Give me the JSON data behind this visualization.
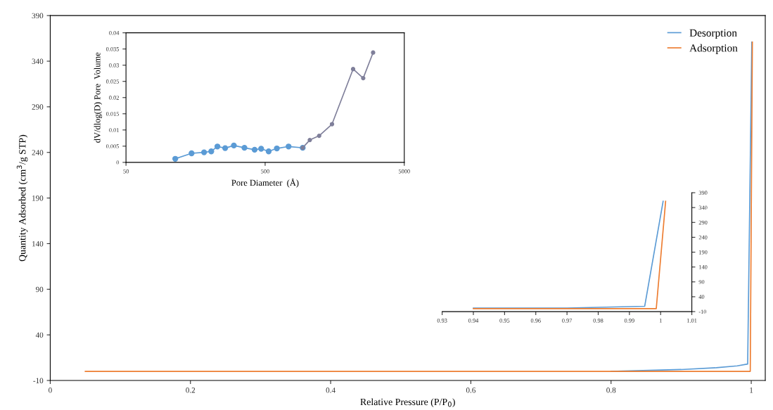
{
  "chart_data": [
    {
      "type": "line",
      "xlabel": "Relative Pressure (P/P$_{0}$)",
      "ylabel": "Quantity Adsorbed (cm$^{3}$/g STP)",
      "xlim": [
        0,
        1.02
      ],
      "ylim": [
        -10,
        390
      ],
      "xticks": [
        0,
        0.2,
        0.4,
        0.6,
        0.8,
        1
      ],
      "yticks": [
        -10,
        40,
        90,
        140,
        190,
        240,
        290,
        340,
        390
      ],
      "grid": false,
      "legend": "top right",
      "marker": "none",
      "series": [
        {
          "name": "Desorption",
          "color": "#5b9bd5",
          "x": [
            0.8,
            0.9,
            0.95,
            0.98,
            0.9949,
            1.0008
          ],
          "values": [
            0,
            2,
            4,
            6,
            8,
            361
          ]
        },
        {
          "name": "Adsorption",
          "color": "#ed7d31",
          "x": [
            0.05,
            0.5,
            0.9,
            0.9986,
            1.0016
          ],
          "values": [
            0,
            0,
            0,
            0,
            361
          ]
        }
      ]
    },
    {
      "type": "line",
      "xlabel": "Pore Diameter  (Å)",
      "ylabel": "dV/dlog(D) Pore  Volume",
      "log": "x",
      "xlim": [
        50,
        5000
      ],
      "ylim": [
        0,
        0.04
      ],
      "xticks": [
        50,
        500,
        5000
      ],
      "yticks": [
        0,
        0.005,
        0.01,
        0.015,
        0.02,
        0.025,
        0.03,
        0.035,
        0.04
      ],
      "grid": false,
      "marker": "circle",
      "series": [
        {
          "color": "#5b9bd5",
          "x": [
            113,
            148,
            182,
            205,
            227,
            258,
            298,
            355,
            420,
            468,
            530,
            607,
            737,
            931
          ],
          "values": [
            0.0011,
            0.0028,
            0.0031,
            0.0034,
            0.0049,
            0.0044,
            0.0052,
            0.0045,
            0.0039,
            0.0042,
            0.0034,
            0.0043,
            0.0049,
            0.0045
          ]
        },
        {
          "color": "#7f7f9a",
          "x": [
            931,
            1047,
            1222,
            1512,
            2144,
            2534,
            2985
          ],
          "values": [
            0.0045,
            0.0069,
            0.0082,
            0.0118,
            0.0288,
            0.026,
            0.0339
          ]
        }
      ]
    },
    {
      "type": "line",
      "xlim": [
        0.93,
        1.01
      ],
      "ylim": [
        -10,
        390
      ],
      "xticks": [
        0.93,
        0.94,
        0.95,
        0.96,
        0.97,
        0.98,
        0.99,
        1,
        1.01
      ],
      "yticks": [
        -10,
        40,
        90,
        140,
        190,
        240,
        290,
        340,
        390
      ],
      "grid": false,
      "marker": "none",
      "series": [
        {
          "color": "#5b9bd5",
          "x": [
            0.94,
            0.97,
            0.9949,
            1.0008
          ],
          "values": [
            2,
            2,
            8,
            361
          ]
        },
        {
          "color": "#ed7d31",
          "x": [
            0.94,
            0.97,
            0.9986,
            1.0016
          ],
          "values": [
            0,
            0,
            0,
            361
          ]
        }
      ]
    }
  ]
}
